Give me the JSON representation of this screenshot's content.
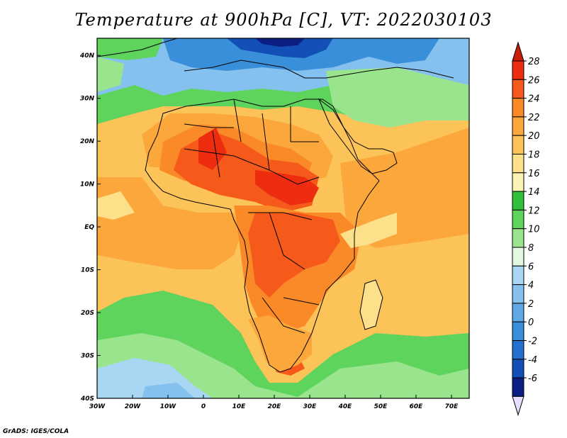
{
  "title": "Temperature at 900hPa [C], VT: 2022030103",
  "credit": "GrADS: IGES/COLA",
  "map": {
    "lat_ticks": [
      "40N",
      "30N",
      "20N",
      "10N",
      "EQ",
      "10S",
      "20S",
      "30S",
      "40S"
    ],
    "lon_ticks": [
      "30W",
      "20W",
      "10W",
      "0",
      "10E",
      "20E",
      "30E",
      "40E",
      "50E",
      "60E",
      "70E"
    ],
    "lon_range": [
      -30,
      75
    ],
    "lat_range": [
      -40,
      44
    ]
  },
  "colorbar": {
    "labels": [
      "28",
      "26",
      "24",
      "22",
      "20",
      "18",
      "16",
      "14",
      "12",
      "10",
      "8",
      "6",
      "4",
      "2",
      "0",
      "-2",
      "-4",
      "-6"
    ],
    "colors": [
      "#ee2d10",
      "#f65a1a",
      "#fa8a28",
      "#fba73c",
      "#fcc359",
      "#fde08a",
      "#fbf3b2",
      "#32bf3a",
      "#5ed45d",
      "#9ae48e",
      "#e3f8e1",
      "#a9d6f3",
      "#84c1ee",
      "#5ea9e5",
      "#3a8fdb",
      "#2370cf",
      "#1250b8",
      "#0b1e82"
    ],
    "top_arrow_color": "#c91d08",
    "bottom_arrow_color": "#e7ddff"
  }
}
